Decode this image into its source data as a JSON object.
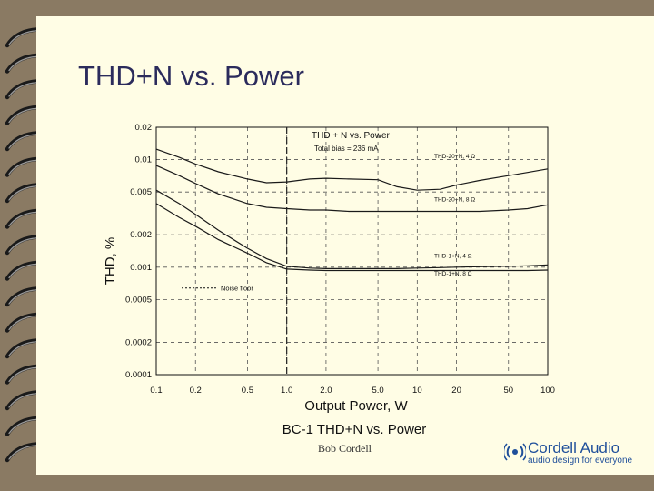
{
  "slide": {
    "title": "THD+N vs. Power",
    "author": "Bob Cordell"
  },
  "logo": {
    "name": "Cordell Audio",
    "tagline": "audio design for everyone",
    "color": "#1f4f9a"
  },
  "colors": {
    "background": "#8a7a63",
    "slide": "#fffde5",
    "title": "#2b2b5c"
  },
  "chart_data": {
    "type": "line",
    "title": "THD + N vs. Power",
    "subtitle": "Total bias = 236 mA",
    "caption": "BC-1 THD+N vs. Power",
    "xlabel": "Output Power, W",
    "ylabel": "THD, %",
    "x_scale": "log",
    "y_scale": "log",
    "xlim": [
      0.1,
      100
    ],
    "ylim": [
      0.0001,
      0.02
    ],
    "x_ticks": [
      0.1,
      0.2,
      0.5,
      1.0,
      2.0,
      5.0,
      10,
      20,
      50,
      100
    ],
    "x_tick_labels": [
      "0.1",
      "0.2",
      "0.5",
      "1.0",
      "2.0",
      "5.0",
      "10",
      "20",
      "50",
      "100"
    ],
    "y_ticks": [
      0.0001,
      0.0002,
      0.0005,
      0.001,
      0.002,
      0.005,
      0.01,
      0.02
    ],
    "y_tick_labels": [
      "0.0001",
      "0.0002",
      "0.0005",
      "0.001",
      "0.002",
      "0.005",
      "0.01",
      "0.02"
    ],
    "grid": true,
    "series": [
      {
        "name": "THD-20+N, 4 Ω",
        "x": [
          0.1,
          0.15,
          0.2,
          0.3,
          0.5,
          0.7,
          1.0,
          1.5,
          2,
          3,
          5,
          7,
          10,
          15,
          20,
          30,
          50,
          70,
          100
        ],
        "y": [
          0.0125,
          0.0105,
          0.0091,
          0.0077,
          0.0066,
          0.0061,
          0.0062,
          0.0066,
          0.0067,
          0.0066,
          0.0065,
          0.0056,
          0.0052,
          0.0053,
          0.0058,
          0.0064,
          0.0071,
          0.0076,
          0.0082
        ]
      },
      {
        "name": "THD-20+N, 8 Ω",
        "x": [
          0.1,
          0.15,
          0.2,
          0.3,
          0.5,
          0.7,
          1.0,
          1.5,
          2,
          3,
          5,
          7,
          10,
          15,
          20,
          30,
          50,
          70,
          100
        ],
        "y": [
          0.0088,
          0.0071,
          0.006,
          0.0048,
          0.0039,
          0.0036,
          0.0035,
          0.0034,
          0.0034,
          0.0033,
          0.0033,
          0.0033,
          0.0033,
          0.0033,
          0.0033,
          0.0033,
          0.0034,
          0.0035,
          0.0038
        ]
      },
      {
        "name": "THD-1+N, 4 Ω",
        "x": [
          0.1,
          0.15,
          0.2,
          0.3,
          0.5,
          0.7,
          1.0,
          1.5,
          2,
          3,
          5,
          7,
          10,
          15,
          20,
          30,
          50,
          70,
          100
        ],
        "y": [
          0.0052,
          0.0039,
          0.0031,
          0.0022,
          0.0015,
          0.0012,
          0.00102,
          0.00098,
          0.00097,
          0.00097,
          0.00097,
          0.00097,
          0.00098,
          0.00099,
          0.001,
          0.00101,
          0.00102,
          0.00103,
          0.00105
        ]
      },
      {
        "name": "THD-1+N, 8 Ω",
        "x": [
          0.1,
          0.15,
          0.2,
          0.3,
          0.5,
          0.7,
          1.0,
          1.5,
          2,
          3,
          5,
          7,
          10,
          15,
          20,
          30,
          50,
          70,
          100
        ],
        "y": [
          0.0039,
          0.0029,
          0.0024,
          0.0018,
          0.00135,
          0.0011,
          0.00096,
          0.00094,
          0.00093,
          0.00093,
          0.00093,
          0.00093,
          0.00093,
          0.00093,
          0.00093,
          0.00093,
          0.00093,
          0.00093,
          0.00094
        ]
      }
    ],
    "reference_lines": [
      {
        "label": "Noise floor",
        "y": 0.00064
      }
    ]
  }
}
